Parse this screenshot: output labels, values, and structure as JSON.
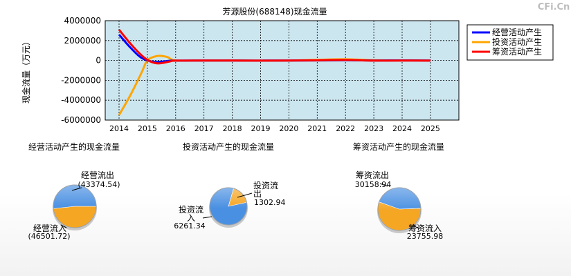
{
  "watermark": "CFi.Cn",
  "chart_data": [
    {
      "type": "line",
      "title": "芳源股份(688148)现金流量",
      "ylabel": "现金流量（万元）",
      "x": [
        "2014",
        "2015",
        "2016",
        "2017",
        "2018",
        "2019",
        "2020",
        "2021",
        "2022",
        "2023",
        "2024",
        "2025"
      ],
      "ylim": [
        -6000000,
        4000000
      ],
      "yticks": [
        4000000,
        2000000,
        0,
        -2000000,
        -4000000,
        -6000000
      ],
      "ytick_labels": [
        "4000000",
        "2000000",
        "0",
        "-2000000",
        "-4000000",
        "-6000000"
      ],
      "grid": true,
      "legend_position": "top-right",
      "series": [
        {
          "name": "经营活动产生",
          "color": "#0000ff",
          "points": [
            [
              2014.0,
              2600000
            ],
            [
              2014.4,
              1300000
            ],
            [
              2014.8,
              250000
            ],
            [
              2015.25,
              -150000
            ],
            [
              2015.8,
              -30000
            ],
            [
              2016.0,
              -20000
            ],
            [
              2017,
              -10000
            ],
            [
              2018,
              -10000
            ],
            [
              2019,
              -15000
            ],
            [
              2020,
              -10000
            ],
            [
              2021,
              0
            ],
            [
              2022,
              20000
            ],
            [
              2023,
              -10000
            ],
            [
              2024,
              0
            ],
            [
              2025,
              -10000
            ]
          ]
        },
        {
          "name": "投资活动产生",
          "color": "#ffa500",
          "points": [
            [
              2014.0,
              -5500000
            ],
            [
              2014.4,
              -3500000
            ],
            [
              2014.8,
              -1200000
            ],
            [
              2015.0,
              0
            ],
            [
              2015.35,
              450000
            ],
            [
              2015.7,
              350000
            ],
            [
              2016.0,
              0
            ],
            [
              2017,
              -10000
            ],
            [
              2018,
              -5000
            ],
            [
              2019,
              -20000
            ],
            [
              2020,
              -10000
            ],
            [
              2021,
              60000
            ],
            [
              2022,
              120000
            ],
            [
              2023,
              20000
            ],
            [
              2024,
              0
            ],
            [
              2025,
              -10000
            ]
          ]
        },
        {
          "name": "筹资活动产生",
          "color": "#ff0000",
          "points": [
            [
              2014.0,
              3100000
            ],
            [
              2014.4,
              1700000
            ],
            [
              2014.8,
              500000
            ],
            [
              2015.1,
              -100000
            ],
            [
              2015.4,
              -300000
            ],
            [
              2015.8,
              -100000
            ],
            [
              2016.0,
              -20000
            ],
            [
              2017,
              -10000
            ],
            [
              2018,
              -10000
            ],
            [
              2019,
              -20000
            ],
            [
              2020,
              -10000
            ],
            [
              2021,
              10000
            ],
            [
              2022,
              50000
            ],
            [
              2023,
              -20000
            ],
            [
              2024,
              -10000
            ],
            [
              2025,
              -20000
            ]
          ]
        }
      ]
    },
    {
      "type": "pie",
      "title": "经营活动产生的现金流量",
      "slices": [
        {
          "name": "经营流出",
          "value_label": "(43374.54)",
          "value": 43374.54,
          "color": "#f5a623"
        },
        {
          "name": "经营流入",
          "value_label": "(46501.72)",
          "value": 46501.72,
          "color": "#4a90e2"
        }
      ]
    },
    {
      "type": "pie",
      "title": "投资活动产生的现金流量",
      "slices": [
        {
          "name": "投资流出",
          "value_label": "1302.94",
          "value": 1302.94,
          "color": "#f5a623"
        },
        {
          "name": "投资流入",
          "value_label": "6261.34",
          "value": 6261.34,
          "color": "#4a90e2"
        }
      ]
    },
    {
      "type": "pie",
      "title": "筹资活动产生的现金流量",
      "slices": [
        {
          "name": "筹资流出",
          "value_label": "30158.94",
          "value": 30158.94,
          "color": "#f5a623"
        },
        {
          "name": "筹资流入",
          "value_label": "23755.98",
          "value": 23755.98,
          "color": "#4a90e2"
        }
      ]
    }
  ]
}
